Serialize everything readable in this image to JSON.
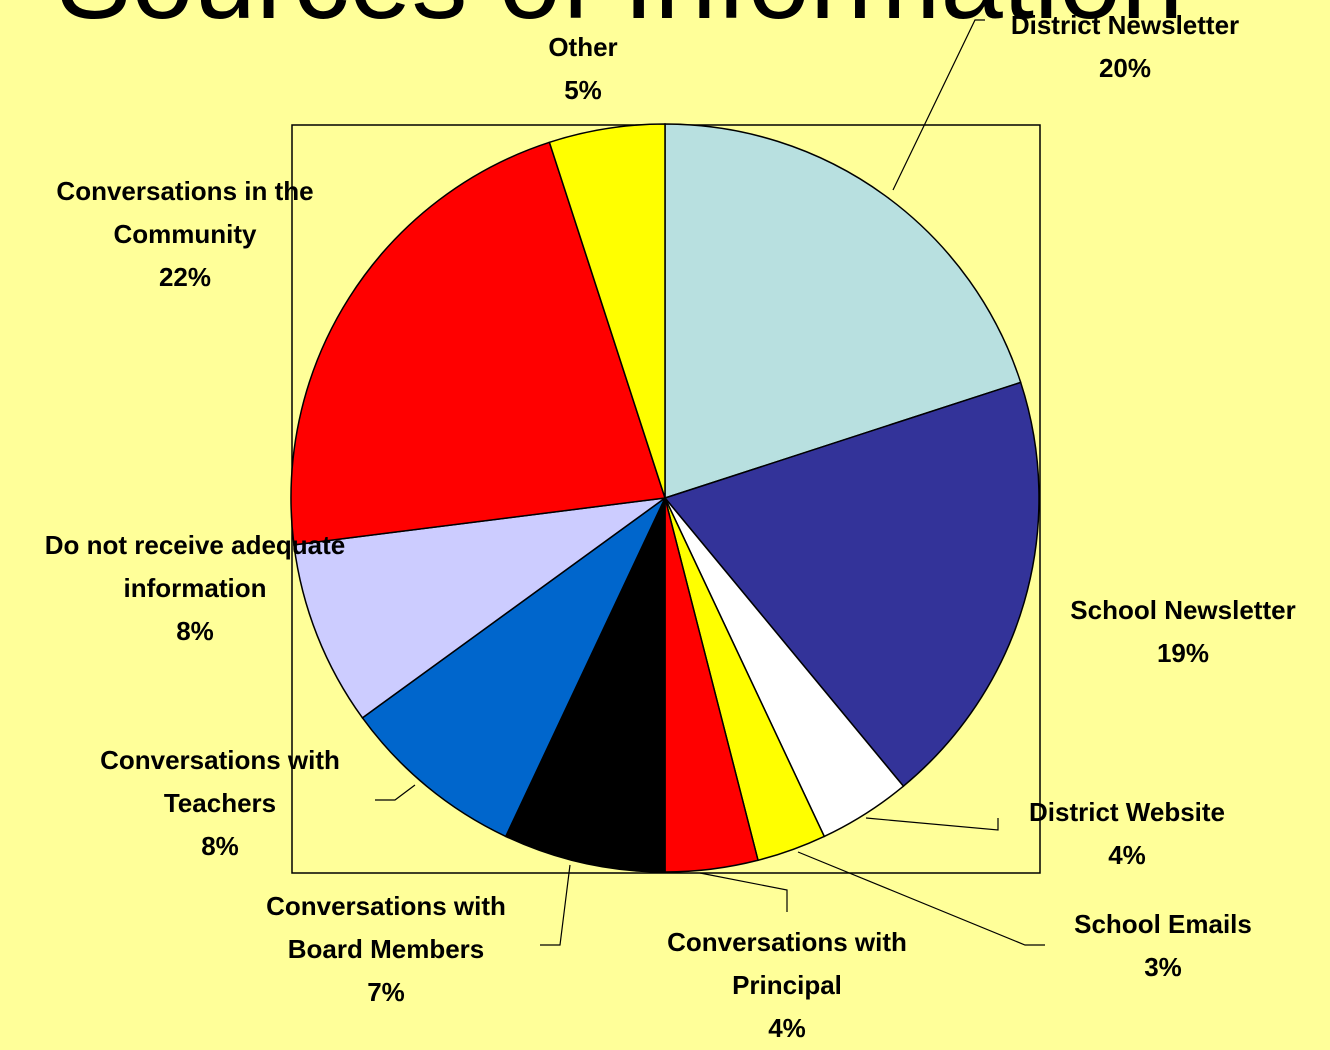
{
  "chart_data": {
    "type": "pie",
    "title": "Sources of Information",
    "categories": [
      "District Newsletter",
      "School Newsletter",
      "District Website",
      "School Emails",
      "Conversations with Principal",
      "Conversations with Board Members",
      "Conversations with Teachers",
      "Do not receive adequate information",
      "Conversations in the Community",
      "Other"
    ],
    "values": [
      20,
      19,
      4,
      3,
      4,
      7,
      8,
      8,
      22,
      5
    ],
    "value_labels": [
      "20%",
      "19%",
      "4%",
      "3%",
      "4%",
      "7%",
      "8%",
      "8%",
      "22%",
      "5%"
    ],
    "colors": [
      "#b8e0e0",
      "#333399",
      "#ffffff",
      "#ffff00",
      "#ff0000",
      "#000000",
      "#0066cc",
      "#ccccff",
      "#ff0000",
      "#ffff00"
    ]
  }
}
